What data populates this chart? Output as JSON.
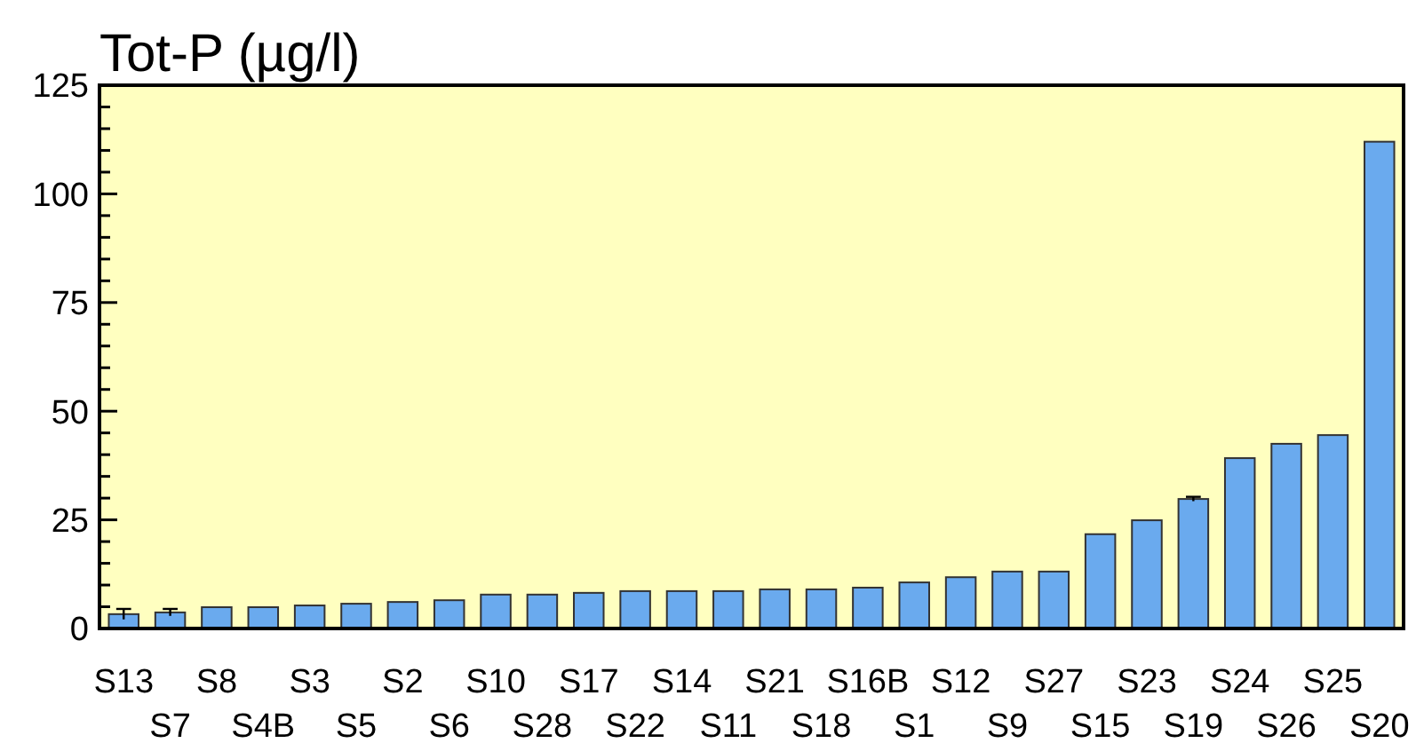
{
  "chart_data": {
    "type": "bar",
    "title": "Tot-P (µg/l)",
    "categories": [
      "S13",
      "S7",
      "S8",
      "S4B",
      "S3",
      "S5",
      "S2",
      "S6",
      "S10",
      "S28",
      "S17",
      "S22",
      "S14",
      "S11",
      "S21",
      "S18",
      "S16B",
      "S1",
      "S12",
      "S9",
      "S27",
      "S15",
      "S23",
      "S19",
      "S24",
      "S26",
      "S25",
      "S20"
    ],
    "values": [
      3.3,
      3.7,
      4.9,
      4.9,
      5.3,
      5.7,
      6.1,
      6.5,
      7.8,
      7.8,
      8.2,
      8.6,
      8.6,
      8.6,
      9,
      9,
      9.4,
      10.6,
      11.8,
      13.1,
      13.1,
      21.7,
      24.9,
      29.8,
      39.2,
      42.5,
      44.5,
      112
    ],
    "errors": [
      1.2,
      0.8,
      null,
      null,
      null,
      null,
      null,
      null,
      null,
      null,
      null,
      null,
      null,
      null,
      null,
      null,
      null,
      null,
      null,
      null,
      null,
      null,
      null,
      0.5,
      null,
      null,
      null,
      null
    ],
    "color": "#6aaaee",
    "ylim": [
      0,
      125
    ],
    "yticks": [
      0,
      {
        "value": 5,
        "label": null
      },
      {
        "value": 10,
        "label": null
      },
      {
        "value": 15,
        "label": null
      },
      {
        "value": 20,
        "label": null
      },
      25,
      {
        "value": 30,
        "label": null
      },
      {
        "value": 35,
        "label": null
      },
      {
        "value": 40,
        "label": null
      },
      {
        "value": 45,
        "label": null
      },
      50,
      {
        "value": 55,
        "label": null
      },
      {
        "value": 60,
        "label": null
      },
      {
        "value": 65,
        "label": null
      },
      {
        "value": 70,
        "label": null
      },
      75,
      {
        "value": 80,
        "label": null
      },
      {
        "value": 85,
        "label": null
      },
      {
        "value": 90,
        "label": null
      },
      {
        "value": 95,
        "label": null
      },
      100,
      {
        "value": 105,
        "label": null
      },
      {
        "value": 110,
        "label": null
      },
      {
        "value": 115,
        "label": null
      },
      {
        "value": 120,
        "label": null
      },
      125
    ],
    "grid": false
  }
}
